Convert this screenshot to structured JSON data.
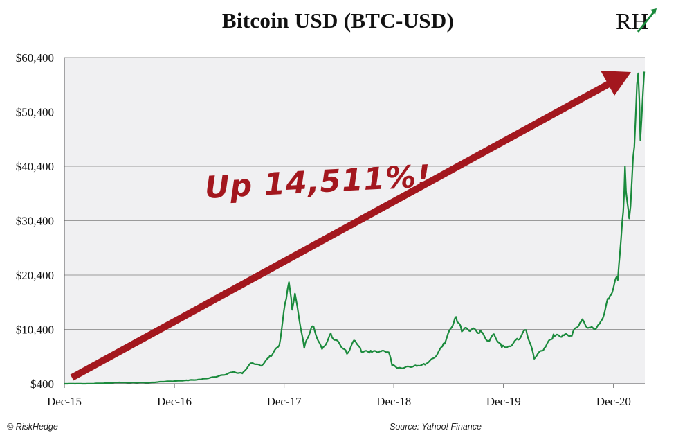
{
  "header": {
    "title": "Bitcoin USD (BTC-USD)",
    "logo_text": "RH"
  },
  "annotation": "Up 14,511%!",
  "footer": {
    "copyright": "© RiskHedge",
    "source": "Source: Yahoo! Finance"
  },
  "colors": {
    "line": "#1a8a3c",
    "arrow": "#a3171e",
    "plot_bg": "#f0f0f2",
    "grid": "#9a9a9a"
  },
  "chart_data": {
    "type": "line",
    "title": "Bitcoin USD (BTC-USD)",
    "xlabel": "",
    "ylabel": "",
    "ylim": [
      400,
      60400
    ],
    "yticks": [
      400,
      10400,
      20400,
      30400,
      40400,
      50400,
      60400
    ],
    "ytick_labels": [
      "$400",
      "$10,400",
      "$20,400",
      "$30,400",
      "$40,400",
      "$50,400",
      "$60,400"
    ],
    "xtick_labels": [
      "Dec-15",
      "Dec-16",
      "Dec-17",
      "Dec-18",
      "Dec-19",
      "Dec-20"
    ],
    "xtick_dates": [
      "2015-12-01",
      "2016-12-01",
      "2017-12-01",
      "2018-12-01",
      "2019-12-01",
      "2020-12-01"
    ],
    "x_range": [
      "2015-12-01",
      "2021-03-15"
    ],
    "grid": "horizontal",
    "legend": "none",
    "series": [
      {
        "points": [
          [
            "2015-12-01",
            400
          ],
          [
            "2016-03-01",
            420
          ],
          [
            "2016-06-01",
            650
          ],
          [
            "2016-09-01",
            600
          ],
          [
            "2016-12-01",
            900
          ],
          [
            "2017-01-15",
            1000
          ],
          [
            "2017-03-01",
            1200
          ],
          [
            "2017-05-01",
            1900
          ],
          [
            "2017-06-15",
            2600
          ],
          [
            "2017-07-15",
            2300
          ],
          [
            "2017-08-15",
            4200
          ],
          [
            "2017-09-15",
            3700
          ],
          [
            "2017-10-15",
            5600
          ],
          [
            "2017-11-15",
            7500
          ],
          [
            "2017-12-08",
            16000
          ],
          [
            "2017-12-17",
            19100
          ],
          [
            "2017-12-28",
            14000
          ],
          [
            "2018-01-06",
            17000
          ],
          [
            "2018-02-06",
            7000
          ],
          [
            "2018-03-05",
            11000
          ],
          [
            "2018-04-06",
            6800
          ],
          [
            "2018-05-05",
            9700
          ],
          [
            "2018-06-28",
            5900
          ],
          [
            "2018-07-25",
            8300
          ],
          [
            "2018-08-15",
            6300
          ],
          [
            "2018-09-15",
            6500
          ],
          [
            "2018-10-15",
            6400
          ],
          [
            "2018-11-14",
            6200
          ],
          [
            "2018-11-25",
            3800
          ],
          [
            "2018-12-15",
            3300
          ],
          [
            "2019-01-15",
            3600
          ],
          [
            "2019-02-15",
            3650
          ],
          [
            "2019-03-15",
            3900
          ],
          [
            "2019-04-15",
            5200
          ],
          [
            "2019-05-15",
            7800
          ],
          [
            "2019-06-26",
            12700
          ],
          [
            "2019-07-15",
            10000
          ],
          [
            "2019-08-15",
            10300
          ],
          [
            "2019-09-15",
            10200
          ],
          [
            "2019-10-15",
            8300
          ],
          [
            "2019-10-26",
            9400
          ],
          [
            "2019-11-25",
            7100
          ],
          [
            "2019-12-15",
            7200
          ],
          [
            "2020-01-15",
            8700
          ],
          [
            "2020-02-14",
            10300
          ],
          [
            "2020-03-12",
            5000
          ],
          [
            "2020-04-15",
            7000
          ],
          [
            "2020-05-15",
            9500
          ],
          [
            "2020-06-15",
            9400
          ],
          [
            "2020-07-15",
            9200
          ],
          [
            "2020-08-15",
            11800
          ],
          [
            "2020-09-15",
            10700
          ],
          [
            "2020-10-15",
            11400
          ],
          [
            "2020-11-15",
            16000
          ],
          [
            "2020-12-15",
            19500
          ],
          [
            "2021-01-02",
            32000
          ],
          [
            "2021-01-08",
            40400
          ],
          [
            "2021-01-22",
            30800
          ],
          [
            "2021-02-08",
            44000
          ],
          [
            "2021-02-21",
            57500
          ],
          [
            "2021-02-28",
            45200
          ],
          [
            "2021-03-13",
            57800
          ]
        ]
      }
    ]
  }
}
